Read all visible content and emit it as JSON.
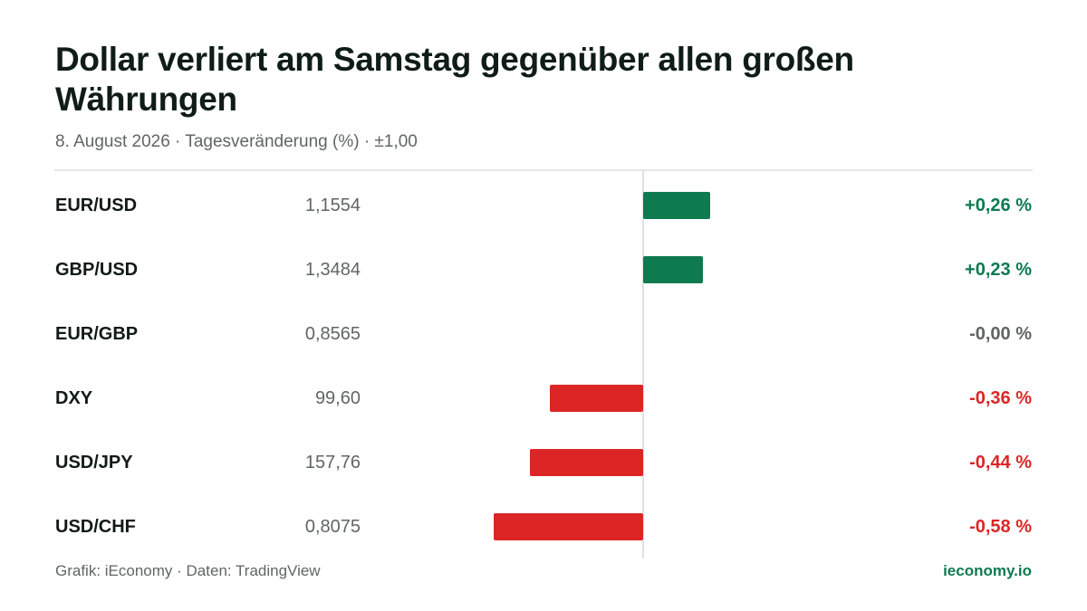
{
  "title": "Dollar verliert am Samstag gegenüber allen großen Währungen",
  "subtitle": "8. August 2026 · Tagesveränderung (%) · ±1,00",
  "footer": {
    "source": "Grafik: iEconomy · Daten: TradingView",
    "brand": "ieconomy.io"
  },
  "colors": {
    "positive": "#0d7a50",
    "negative": "#dc2626",
    "neutral": "#5f6663"
  },
  "chart_data": {
    "type": "bar",
    "orientation": "horizontal",
    "categories": [
      "EUR/USD",
      "GBP/USD",
      "EUR/GBP",
      "DXY",
      "USD/JPY",
      "USD/CHF"
    ],
    "rates": [
      "1,1554",
      "1,3484",
      "0,8565",
      "99,60",
      "157,76",
      "0,8075"
    ],
    "values": [
      0.26,
      0.23,
      -0.0,
      -0.36,
      -0.44,
      -0.58
    ],
    "value_labels": [
      "+0,26 %",
      "+0,23 %",
      "-0,00 %",
      "-0,36 %",
      "-0,44 %",
      "-0,58 %"
    ],
    "xlim": [
      -1,
      1
    ],
    "grid": false,
    "legend": "none"
  }
}
